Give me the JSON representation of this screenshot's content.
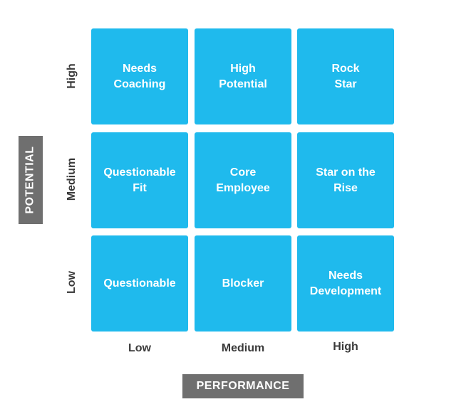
{
  "axes": {
    "x_title": "PERFORMANCE",
    "y_title": "POTENTIAL",
    "x_levels": [
      "Low",
      "Medium",
      "High"
    ],
    "y_levels": [
      "High",
      "Medium",
      "Low"
    ]
  },
  "colors": {
    "cell_fill": "#1fbaed",
    "cell_text": "#ffffff",
    "axis_title_fill": "#6f6f6f",
    "label_text": "#3a3a3a"
  },
  "grid": {
    "rows": [
      {
        "potential": "High",
        "cells": [
          "Needs\nCoaching",
          "High\nPotential",
          "Rock\nStar"
        ]
      },
      {
        "potential": "Medium",
        "cells": [
          "Questionable\nFit",
          "Core\nEmployee",
          "Star on the\nRise"
        ]
      },
      {
        "potential": "Low",
        "cells": [
          "Questionable",
          "Blocker",
          "Needs\nDevelopment"
        ]
      }
    ]
  }
}
